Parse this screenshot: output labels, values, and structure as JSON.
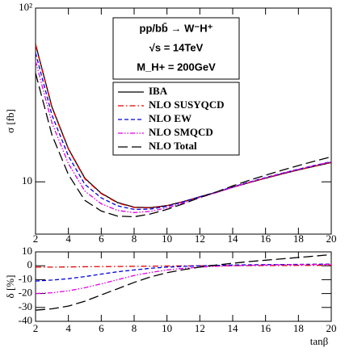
{
  "chart_data": [
    {
      "type": "line",
      "log_y": true,
      "ylabel": "σ [fb]",
      "x": [
        2,
        3,
        4,
        5,
        6,
        7,
        8,
        9,
        10,
        11,
        12,
        13,
        14,
        15,
        16,
        17,
        18,
        19,
        20
      ],
      "xlim": [
        2,
        20
      ],
      "xticks": [
        2,
        4,
        6,
        8,
        10,
        12,
        14,
        16,
        18,
        20
      ],
      "ylim": [
        5,
        100
      ],
      "yticks": [
        10,
        {
          "value": 100,
          "label": "10²"
        }
      ],
      "annotations": [
        "pp/bb̄ → W⁻H⁺",
        "√s = 14TeV",
        "M_H+ = 200GeV"
      ],
      "series": [
        {
          "name": "IBA",
          "color": "#000000",
          "dash": "solid",
          "values": [
            62,
            27,
            15.5,
            10.5,
            8.6,
            7.6,
            7.15,
            7.1,
            7.3,
            7.7,
            8.2,
            8.7,
            9.3,
            9.9,
            10.5,
            11.1,
            11.7,
            12.3,
            12.9
          ]
        },
        {
          "name": "NLO SUSYQCD",
          "color": "#e00000",
          "dash": "dashdot",
          "values": [
            61.4,
            26.7,
            15.4,
            10.4,
            8.55,
            7.56,
            7.12,
            7.08,
            7.29,
            7.69,
            8.2,
            8.7,
            9.31,
            9.91,
            10.52,
            11.12,
            11.74,
            12.34,
            12.95
          ]
        },
        {
          "name": "NLO EW",
          "color": "#0000e0",
          "dash": "dash",
          "values": [
            55.2,
            24.2,
            14.06,
            9.68,
            8.08,
            7.27,
            6.94,
            6.97,
            7.23,
            7.67,
            8.2,
            8.73,
            9.35,
            9.97,
            10.58,
            11.2,
            11.82,
            12.44,
            13.05
          ]
        },
        {
          "name": "NLO SMQCD",
          "color": "#e000e0",
          "dash": "dashdotdot",
          "values": [
            49.6,
            21.8,
            12.71,
            8.84,
            7.48,
            6.84,
            6.65,
            6.76,
            7.08,
            7.56,
            8.12,
            8.67,
            9.3,
            9.93,
            10.55,
            11.18,
            11.79,
            12.41,
            13.03
          ]
        },
        {
          "name": "NLO Total",
          "color": "#000000",
          "dash": "longdash",
          "values": [
            42.2,
            18.6,
            11.0,
            7.82,
            6.79,
            6.35,
            6.29,
            6.53,
            6.94,
            7.48,
            8.12,
            8.74,
            9.47,
            10.2,
            10.92,
            11.66,
            12.4,
            13.16,
            13.93
          ]
        }
      ]
    },
    {
      "type": "line",
      "ylabel": "δ [%]",
      "xlabel": "tanβ",
      "x": [
        2,
        3,
        4,
        5,
        6,
        7,
        8,
        9,
        10,
        11,
        12,
        13,
        14,
        15,
        16,
        17,
        18,
        19,
        20
      ],
      "xlim": [
        2,
        20
      ],
      "xticks": [
        2,
        4,
        6,
        8,
        10,
        12,
        14,
        16,
        18,
        20
      ],
      "ylim": [
        -40,
        10
      ],
      "yticks": [
        -40,
        -30,
        -20,
        -10,
        0,
        10
      ],
      "series": [
        {
          "color": "#e00000",
          "dash": "dashdot",
          "values": [
            -1,
            -1,
            -0.8,
            -0.7,
            -0.6,
            -0.5,
            -0.4,
            -0.3,
            -0.2,
            -0.1,
            0,
            0,
            0.1,
            0.1,
            0.2,
            0.2,
            0.3,
            0.3,
            0.4
          ]
        },
        {
          "color": "#0000e0",
          "dash": "dash",
          "values": [
            -11,
            -10.3,
            -9.3,
            -7.8,
            -6,
            -4.3,
            -3,
            -1.8,
            -1,
            -0.4,
            0,
            0.3,
            0.5,
            0.7,
            0.8,
            0.9,
            1,
            1.1,
            1.2
          ]
        },
        {
          "color": "#e000e0",
          "dash": "dashdotdot",
          "values": [
            -20,
            -19.4,
            -18,
            -15.8,
            -13,
            -10,
            -7,
            -4.8,
            -3,
            -1.8,
            -1,
            -0.4,
            0,
            0.3,
            0.5,
            0.7,
            0.8,
            0.9,
            1
          ]
        },
        {
          "color": "#000000",
          "dash": "longdash",
          "values": [
            -32,
            -31,
            -29,
            -25.5,
            -21,
            -16.5,
            -12,
            -8,
            -5,
            -2.8,
            -1,
            0.5,
            1.8,
            3,
            4,
            5,
            6,
            7,
            8
          ]
        }
      ]
    }
  ]
}
